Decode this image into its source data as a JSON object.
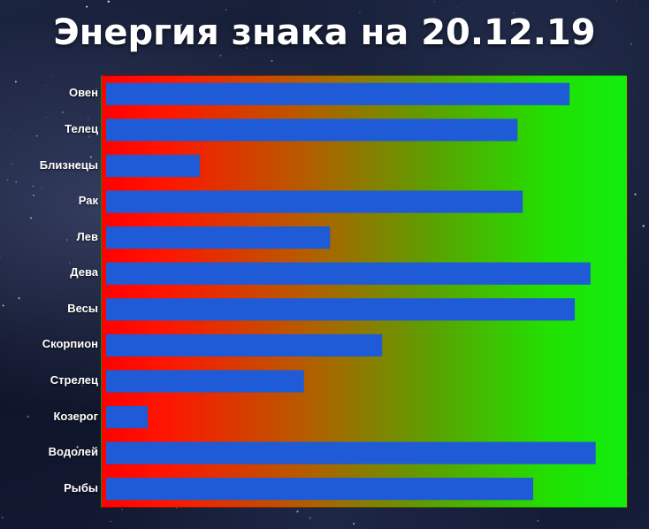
{
  "title": "Энергия знака на 20.12.19",
  "colors": {
    "bar": "#1f5bd6",
    "gradient_start": "#ff0000",
    "gradient_end": "#10ee10"
  },
  "chart_data": {
    "type": "bar",
    "orientation": "horizontal",
    "title": "Энергия знака на 20.12.19",
    "categories": [
      "Овен",
      "Телец",
      "Близнецы",
      "Рак",
      "Лев",
      "Дева",
      "Весы",
      "Скорпион",
      "Стрелец",
      "Козерог",
      "Водолей",
      "Рыбы"
    ],
    "values": [
      89,
      79,
      18,
      80,
      43,
      93,
      90,
      53,
      38,
      8,
      94,
      82
    ],
    "xlim": [
      0,
      100
    ],
    "grid": false,
    "legend": "none"
  }
}
